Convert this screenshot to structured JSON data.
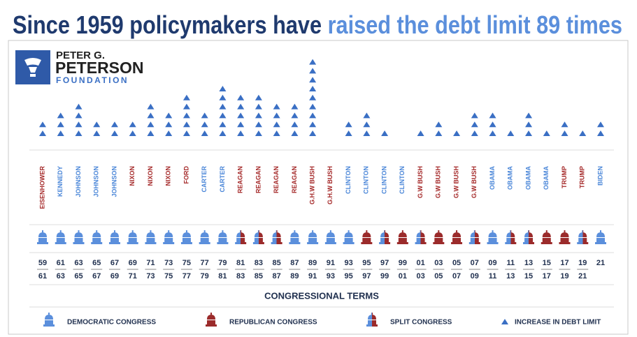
{
  "logo": {
    "line1": "PETER G.",
    "line2": "PETERSON",
    "line3": "FOUNDATION"
  },
  "chart_data": {
    "type": "pictogram",
    "title": "Since 1959 policymakers have",
    "title_highlight": "raised the debt limit 89 times",
    "x_label": "CONGRESSIONAL TERMS",
    "categories": [
      "EISENHOWER",
      "KENNEDY",
      "JOHNSON",
      "JOHNSON",
      "JOHNSON",
      "NIXON",
      "NIXON",
      "NIXON",
      "FORD",
      "CARTER",
      "CARTER",
      "REAGAN",
      "REAGAN",
      "REAGAN",
      "REAGAN",
      "G.H.W BUSH",
      "G.H.W BUSH",
      "CLINTON",
      "CLINTON",
      "CLINTON",
      "CLINTON",
      "G.W BUSH",
      "G.W BUSH",
      "G.W BUSH",
      "G.W BUSH",
      "OBAMA",
      "OBAMA",
      "OBAMA",
      "OBAMA",
      "TRUMP",
      "TRUMP",
      "BIDEN"
    ],
    "category_colors": [
      "#a52a2a",
      "#4a86d8",
      "#4a86d8",
      "#4a86d8",
      "#4a86d8",
      "#a52a2a",
      "#a52a2a",
      "#a52a2a",
      "#a52a2a",
      "#4a86d8",
      "#4a86d8",
      "#a52a2a",
      "#a52a2a",
      "#a52a2a",
      "#a52a2a",
      "#a52a2a",
      "#a52a2a",
      "#4a86d8",
      "#4a86d8",
      "#4a86d8",
      "#4a86d8",
      "#a52a2a",
      "#a52a2a",
      "#a52a2a",
      "#a52a2a",
      "#4a86d8",
      "#4a86d8",
      "#4a86d8",
      "#4a86d8",
      "#a52a2a",
      "#a52a2a",
      "#4a86d8"
    ],
    "term_start": [
      "59",
      "61",
      "63",
      "65",
      "67",
      "69",
      "71",
      "73",
      "75",
      "77",
      "79",
      "81",
      "83",
      "85",
      "87",
      "89",
      "91",
      "93",
      "95",
      "97",
      "99",
      "01",
      "03",
      "05",
      "07",
      "09",
      "11",
      "13",
      "15",
      "17",
      "19",
      "21"
    ],
    "term_end": [
      "61",
      "63",
      "65",
      "67",
      "69",
      "71",
      "73",
      "75",
      "77",
      "79",
      "81",
      "83",
      "85",
      "87",
      "89",
      "91",
      "93",
      "95",
      "97",
      "99",
      "01",
      "03",
      "05",
      "07",
      "09",
      "11",
      "13",
      "15",
      "17",
      "19",
      "21",
      null
    ],
    "values": [
      2,
      3,
      4,
      2,
      2,
      2,
      4,
      3,
      5,
      3,
      6,
      5,
      5,
      4,
      4,
      9,
      0,
      2,
      3,
      1,
      0,
      1,
      2,
      1,
      3,
      3,
      1,
      3,
      1,
      2,
      1,
      2
    ],
    "congress": [
      0,
      0,
      0,
      0,
      0,
      0,
      0,
      0,
      0,
      0,
      0,
      2,
      2,
      2,
      0,
      0,
      0,
      0,
      1,
      2,
      1,
      2,
      1,
      1,
      2,
      0,
      2,
      2,
      1,
      1,
      2,
      0
    ],
    "color": "#3a6fc4",
    "legend": [
      {
        "label": "DEMOCRATIC CONGRESS",
        "color": "#5b8fdc"
      },
      {
        "label": "REPUBLICAN CONGRESS",
        "color": "#9b2b2b"
      },
      {
        "label": "SPLIT CONGRESS"
      },
      {
        "label": "INCREASE IN DEBT LIMIT"
      }
    ]
  }
}
